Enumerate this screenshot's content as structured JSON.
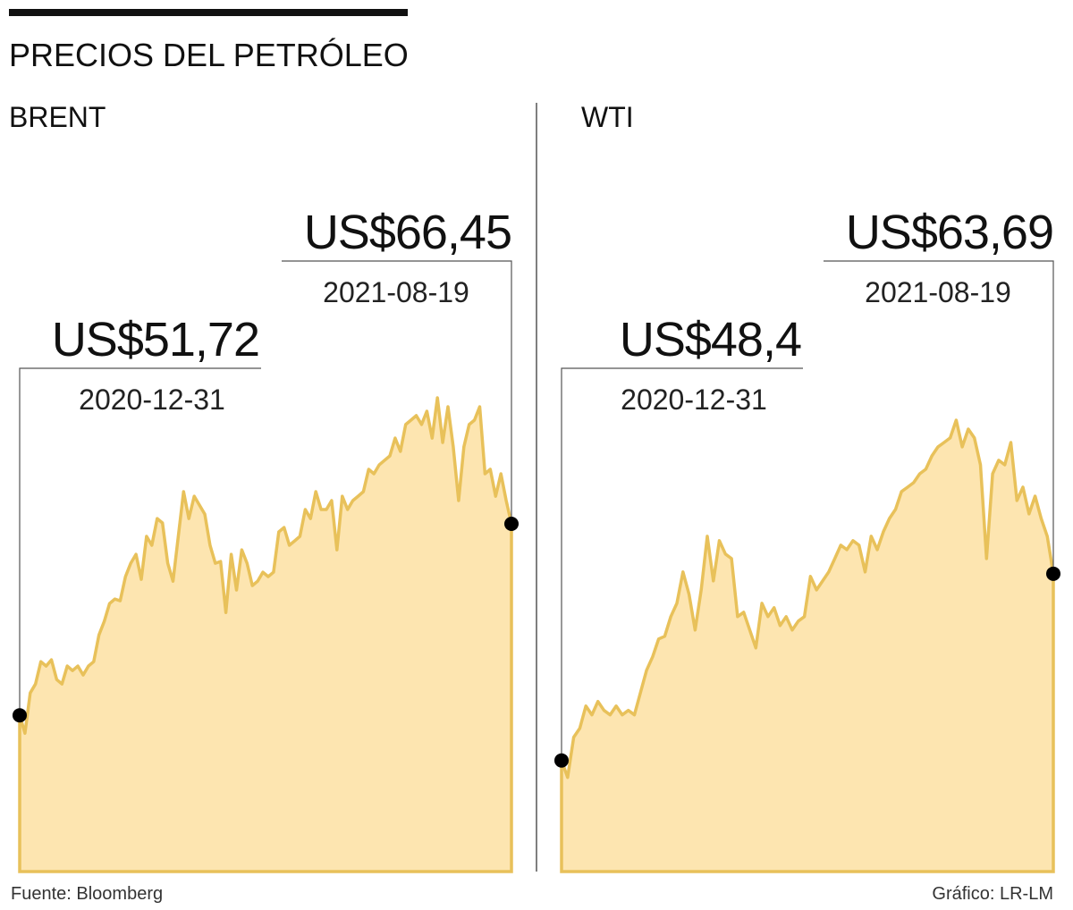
{
  "header": {
    "title": "PRECIOS DEL PETRÓLEO"
  },
  "chart_data": [
    {
      "type": "area",
      "title": "BRENT",
      "color": "#e8c15a",
      "fill": "#fde5b0",
      "ylim": [
        39.7,
        80
      ],
      "values": [
        51.72,
        50.34,
        53.44,
        54.13,
        55.85,
        55.51,
        55.99,
        54.47,
        54.13,
        55.51,
        55.16,
        55.51,
        54.82,
        55.51,
        55.85,
        57.91,
        58.95,
        60.32,
        60.67,
        60.53,
        62.39,
        63.42,
        64.11,
        62.18,
        65.49,
        64.8,
        66.86,
        66.52,
        63.42,
        62.04,
        65.49,
        68.93,
        66.86,
        68.58,
        67.89,
        67.2,
        64.8,
        63.42,
        63.56,
        59.63,
        64.11,
        61.36,
        64.45,
        63.42,
        61.7,
        62.04,
        62.73,
        62.39,
        62.73,
        65.83,
        66.17,
        64.8,
        65.14,
        65.49,
        67.55,
        66.86,
        68.93,
        67.55,
        67.55,
        68.24,
        64.45,
        68.58,
        67.55,
        68.24,
        68.58,
        68.93,
        70.65,
        70.3,
        71.0,
        71.34,
        71.68,
        73.05,
        72.02,
        74.09,
        74.43,
        74.78,
        74.09,
        75.12,
        73.05,
        76.15,
        72.71,
        75.46,
        72.37,
        68.24,
        72.37,
        74.09,
        74.43,
        75.46,
        70.3,
        70.65,
        68.58,
        70.3,
        68.24,
        66.45
      ],
      "annotations": [
        {
          "text": "US$51,72",
          "date": "2020-12-31"
        },
        {
          "text": "US$66,45",
          "date": "2021-08-19"
        }
      ]
    },
    {
      "type": "area",
      "title": "WTI",
      "color": "#e8c15a",
      "fill": "#fde5b0",
      "ylim": [
        39.3,
        82.2
      ],
      "values": [
        48.4,
        47.01,
        50.3,
        51.03,
        52.86,
        52.13,
        53.23,
        52.5,
        52.13,
        52.86,
        52.13,
        52.5,
        52.13,
        53.96,
        55.79,
        56.89,
        58.35,
        58.57,
        60.18,
        61.27,
        63.84,
        62.01,
        59.08,
        62.37,
        66.76,
        63.1,
        66.4,
        65.3,
        64.93,
        60.18,
        60.54,
        59.08,
        57.62,
        61.27,
        60.18,
        60.91,
        59.45,
        60.18,
        59.08,
        59.81,
        60.18,
        63.47,
        62.37,
        63.1,
        63.84,
        64.93,
        66.03,
        65.66,
        66.4,
        66.03,
        63.84,
        66.76,
        65.66,
        67.13,
        68.22,
        68.96,
        70.42,
        70.78,
        71.15,
        71.88,
        72.25,
        73.34,
        74.08,
        74.44,
        74.81,
        76.27,
        74.08,
        75.54,
        74.81,
        72.61,
        64.93,
        71.88,
        72.98,
        72.61,
        74.44,
        69.69,
        70.78,
        68.59,
        70.05,
        68.22,
        66.76,
        63.69
      ],
      "annotations": [
        {
          "text": "US$48,4",
          "date": "2020-12-31"
        },
        {
          "text": "US$63,69",
          "date": "2021-08-19"
        }
      ]
    }
  ],
  "footer": {
    "source": "Fuente: Bloomberg",
    "credit": "Gráfico: LR-LM"
  }
}
